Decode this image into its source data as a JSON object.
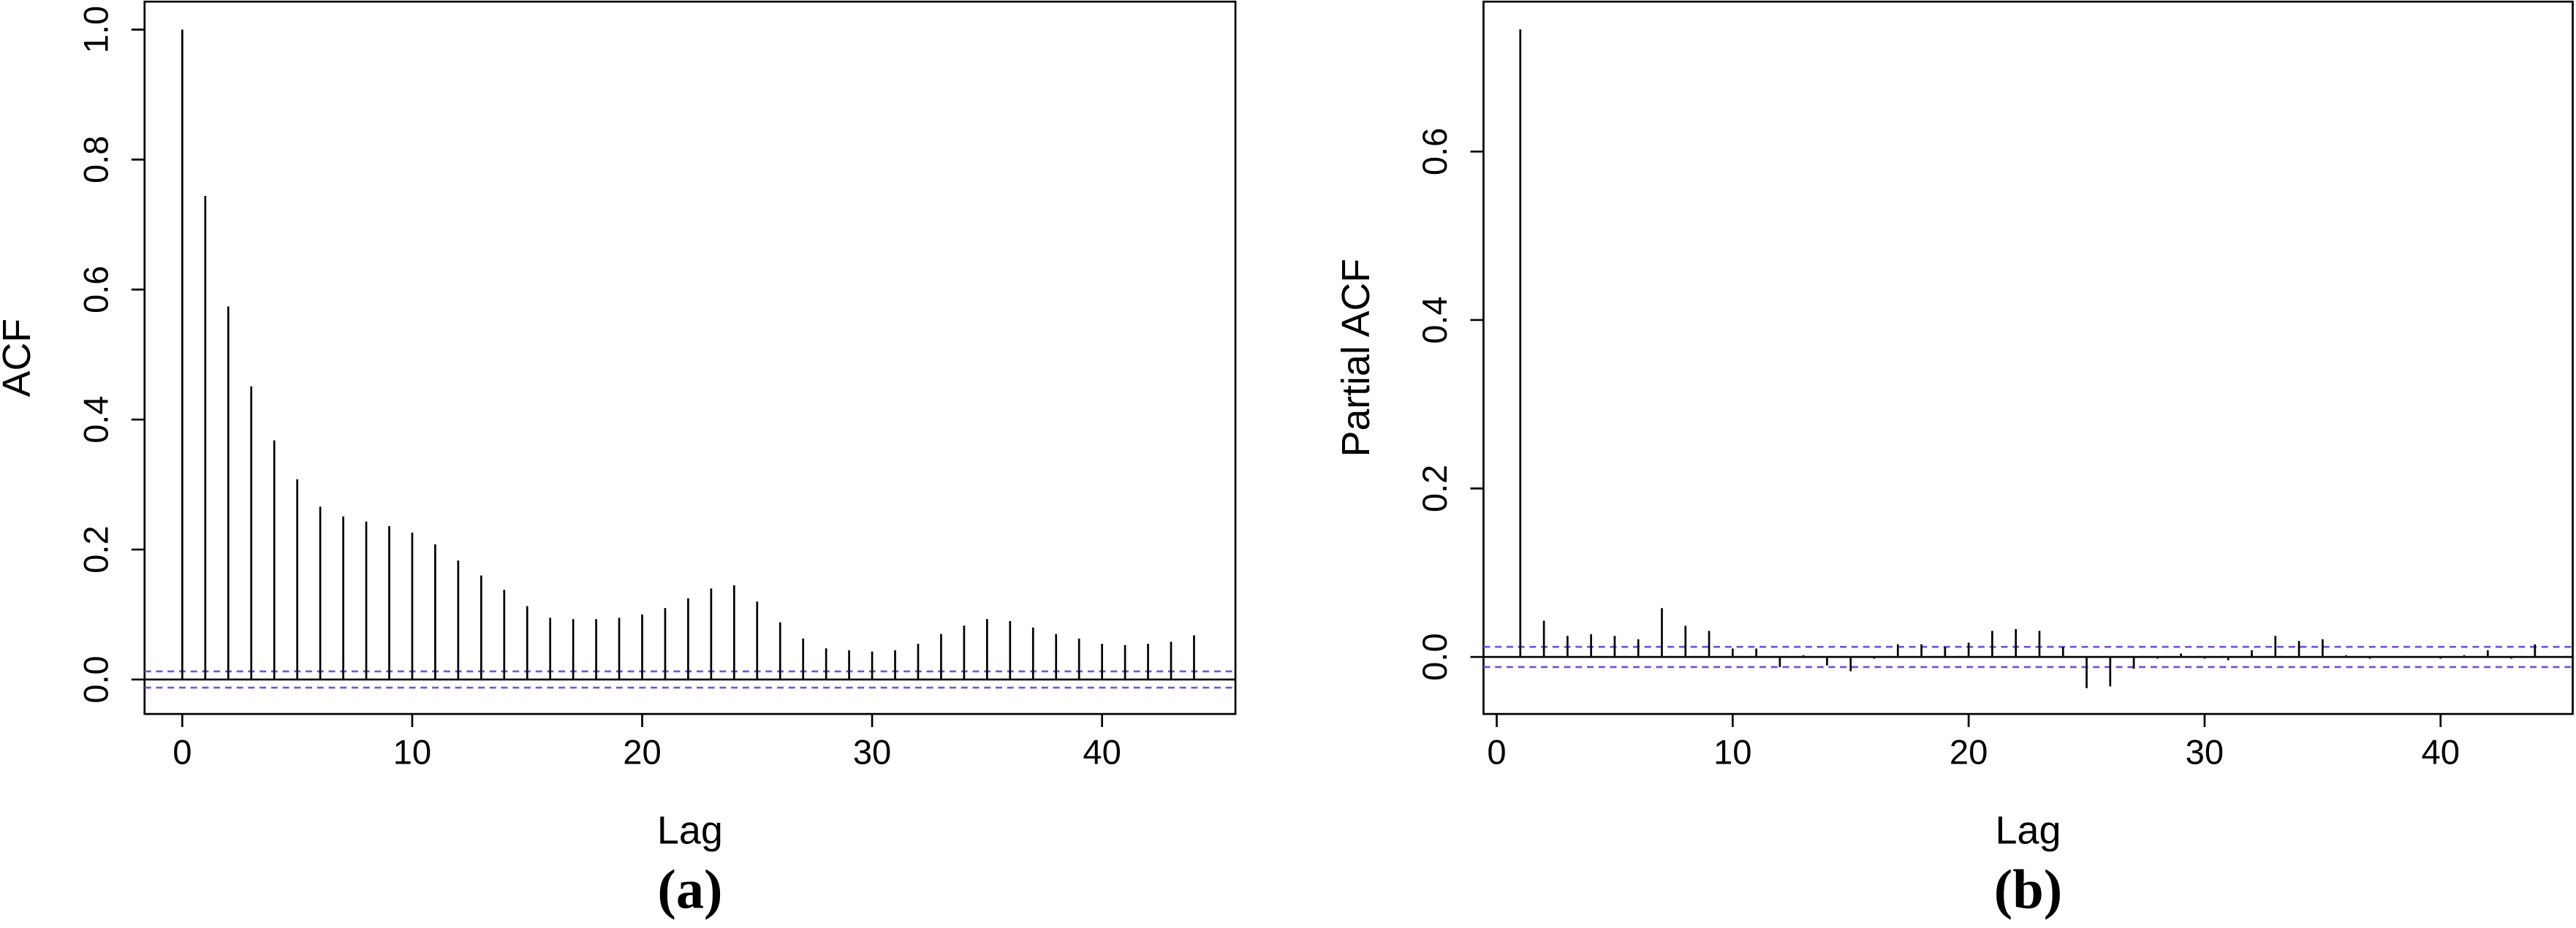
{
  "chart_data": [
    {
      "type": "stem",
      "panel_label": "(a)",
      "x_label": "Lag",
      "y_label": "ACF",
      "color": "#000000",
      "x": [
        0,
        1,
        2,
        3,
        4,
        5,
        6,
        7,
        8,
        9,
        10,
        11,
        12,
        13,
        14,
        15,
        16,
        17,
        18,
        19,
        20,
        21,
        22,
        23,
        24,
        25,
        26,
        27,
        28,
        29,
        30,
        31,
        32,
        33,
        34,
        35,
        36,
        37,
        38,
        39,
        40,
        41,
        42,
        43,
        44
      ],
      "values": [
        1.0,
        0.744,
        0.574,
        0.451,
        0.368,
        0.308,
        0.266,
        0.251,
        0.243,
        0.236,
        0.226,
        0.208,
        0.183,
        0.16,
        0.138,
        0.113,
        0.095,
        0.093,
        0.093,
        0.095,
        0.1,
        0.11,
        0.125,
        0.14,
        0.145,
        0.12,
        0.088,
        0.063,
        0.048,
        0.045,
        0.043,
        0.045,
        0.055,
        0.07,
        0.083,
        0.093,
        0.09,
        0.08,
        0.07,
        0.063,
        0.055,
        0.053,
        0.055,
        0.058,
        0.068
      ],
      "confidence_limit": 0.0125,
      "confidence_color": "#7b52d6",
      "xlim": [
        -1.64,
        45.8
      ],
      "ylim": [
        -0.053,
        1.043
      ],
      "xticks": [
        0,
        10,
        20,
        30,
        40
      ],
      "yticks": [
        {
          "value": 0,
          "label": "0.0"
        },
        0.2,
        0.4,
        0.6,
        0.8,
        {
          "value": 1,
          "label": "1.0"
        }
      ]
    },
    {
      "type": "stem",
      "panel_label": "(b)",
      "x_label": "Lag",
      "y_label": "Partial ACF",
      "color": "#000000",
      "x": [
        1,
        2,
        3,
        4,
        5,
        6,
        7,
        8,
        9,
        10,
        11,
        12,
        13,
        14,
        15,
        16,
        17,
        18,
        19,
        20,
        21,
        22,
        23,
        24,
        25,
        26,
        27,
        28,
        29,
        30,
        31,
        32,
        33,
        34,
        35,
        36,
        37,
        38,
        39,
        40,
        41,
        42,
        43,
        44
      ],
      "values": [
        0.745,
        0.043,
        0.025,
        0.027,
        0.025,
        0.021,
        0.058,
        0.037,
        0.031,
        0.01,
        0.01,
        -0.012,
        0.002,
        -0.01,
        -0.017,
        -0.002,
        0.015,
        0.015,
        0.012,
        0.017,
        0.031,
        0.033,
        0.031,
        0.012,
        -0.037,
        -0.035,
        -0.014,
        -0.002,
        0.004,
        -0.002,
        -0.004,
        0.008,
        0.025,
        0.019,
        0.021,
        0.002,
        -0.002,
        0,
        0,
        -0.002,
        0.002,
        0.008,
        -0.002,
        0.015
      ],
      "confidence_limit": 0.012,
      "confidence_color": "#7b52d6",
      "xlim": [
        -0.56,
        45.6
      ],
      "ylim": [
        -0.0677,
        0.778
      ],
      "xticks": [
        0,
        10,
        20,
        30,
        40
      ],
      "yticks": [
        {
          "value": 0,
          "label": "0.0"
        },
        0.2,
        0.4,
        0.6
      ]
    }
  ]
}
